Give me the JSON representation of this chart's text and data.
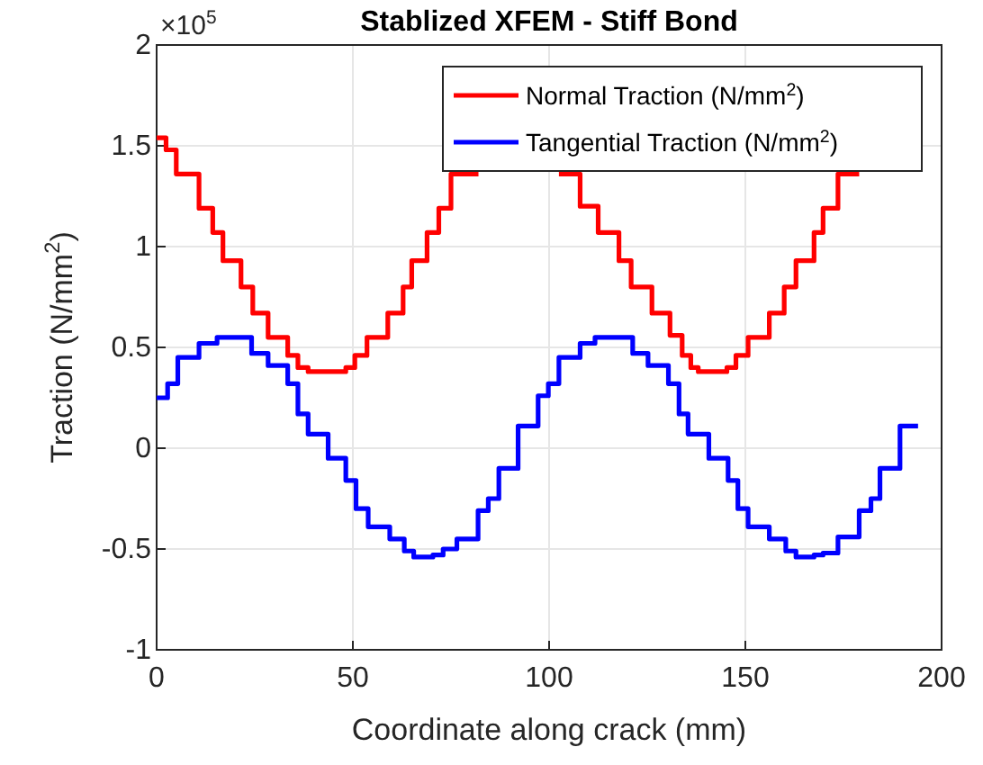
{
  "chart_data": {
    "type": "step",
    "title": "Stablized XFEM - Stiff Bond",
    "xlabel": "Coordinate along crack (mm)",
    "ylabel": "Traction (N/mm$^{2}$)",
    "annotations": [
      "×10$^{5}$"
    ],
    "xlim": [
      0,
      200
    ],
    "xticks": [
      0,
      50,
      100,
      150,
      200
    ],
    "ylim": [
      -1,
      2
    ],
    "yticks": [
      -1,
      -0.5,
      0,
      0.5,
      1,
      1.5,
      2
    ],
    "grid": true,
    "legend": "top right",
    "line_style": "solid",
    "marker": "none",
    "series": [
      {
        "name": "Normal Traction (N/mm$^{2}$)",
        "color": "#ff0000",
        "x": [
          0,
          2.4,
          5,
          10.8,
          14.3,
          16.9,
          21.5,
          24.5,
          28.4,
          33.4,
          36,
          38.6,
          48.2,
          50.5,
          53.6,
          58.9,
          62.8,
          65,
          68.9,
          71.9,
          75,
          82,
          90,
          102.5,
          107.9,
          112.5,
          117.8,
          120.9,
          126.2,
          130.8,
          133.9,
          136.1,
          138,
          145.3,
          147.6,
          150.7,
          156.1,
          159.9,
          162.9,
          167.5,
          169.8,
          173.6,
          179
        ],
        "values": [
          1.54,
          1.48,
          1.36,
          1.19,
          1.07,
          0.93,
          0.8,
          0.67,
          0.55,
          0.46,
          0.4,
          0.38,
          0.4,
          0.46,
          0.55,
          0.67,
          0.8,
          0.93,
          1.07,
          1.19,
          1.36,
          1.36,
          null,
          1.36,
          1.2,
          1.07,
          0.93,
          0.8,
          0.67,
          0.56,
          0.46,
          0.4,
          0.38,
          0.4,
          0.46,
          0.55,
          0.67,
          0.8,
          0.93,
          1.07,
          1.19,
          1.36,
          1.36
        ]
      },
      {
        "name": "Tangential Traction (N/mm$^{2}$)",
        "color": "#0000ff",
        "x": [
          0,
          2.8,
          5.4,
          10.8,
          15.4,
          18.4,
          21.5,
          24.2,
          28.4,
          33.4,
          36,
          38.6,
          43.7,
          48.2,
          50.8,
          53.9,
          59.4,
          63.1,
          65.5,
          70.4,
          73,
          76.5,
          81.9,
          84.5,
          87.2,
          92.1,
          97.2,
          99.8,
          102.5,
          107.9,
          111.7,
          114.8,
          118.6,
          121.3,
          125.2,
          130.4,
          133.1,
          135.4,
          140.7,
          145.6,
          148.1,
          150.7,
          156.1,
          160.3,
          162.9,
          167.5,
          169.8,
          173.6,
          179,
          182,
          184.3,
          189.4,
          194
        ],
        "values": [
          0.25,
          0.32,
          0.45,
          0.52,
          0.55,
          0.55,
          0.55,
          0.47,
          0.41,
          0.32,
          0.17,
          0.07,
          -0.05,
          -0.16,
          -0.3,
          -0.39,
          -0.45,
          -0.51,
          -0.54,
          -0.53,
          -0.5,
          -0.45,
          -0.31,
          -0.25,
          -0.1,
          0.11,
          0.26,
          0.32,
          0.45,
          0.52,
          0.55,
          0.55,
          0.55,
          0.47,
          0.41,
          0.32,
          0.17,
          0.07,
          -0.05,
          -0.16,
          -0.3,
          -0.39,
          -0.45,
          -0.51,
          -0.54,
          -0.53,
          -0.52,
          -0.44,
          -0.31,
          -0.25,
          -0.1,
          0.11,
          0.11
        ]
      }
    ]
  }
}
